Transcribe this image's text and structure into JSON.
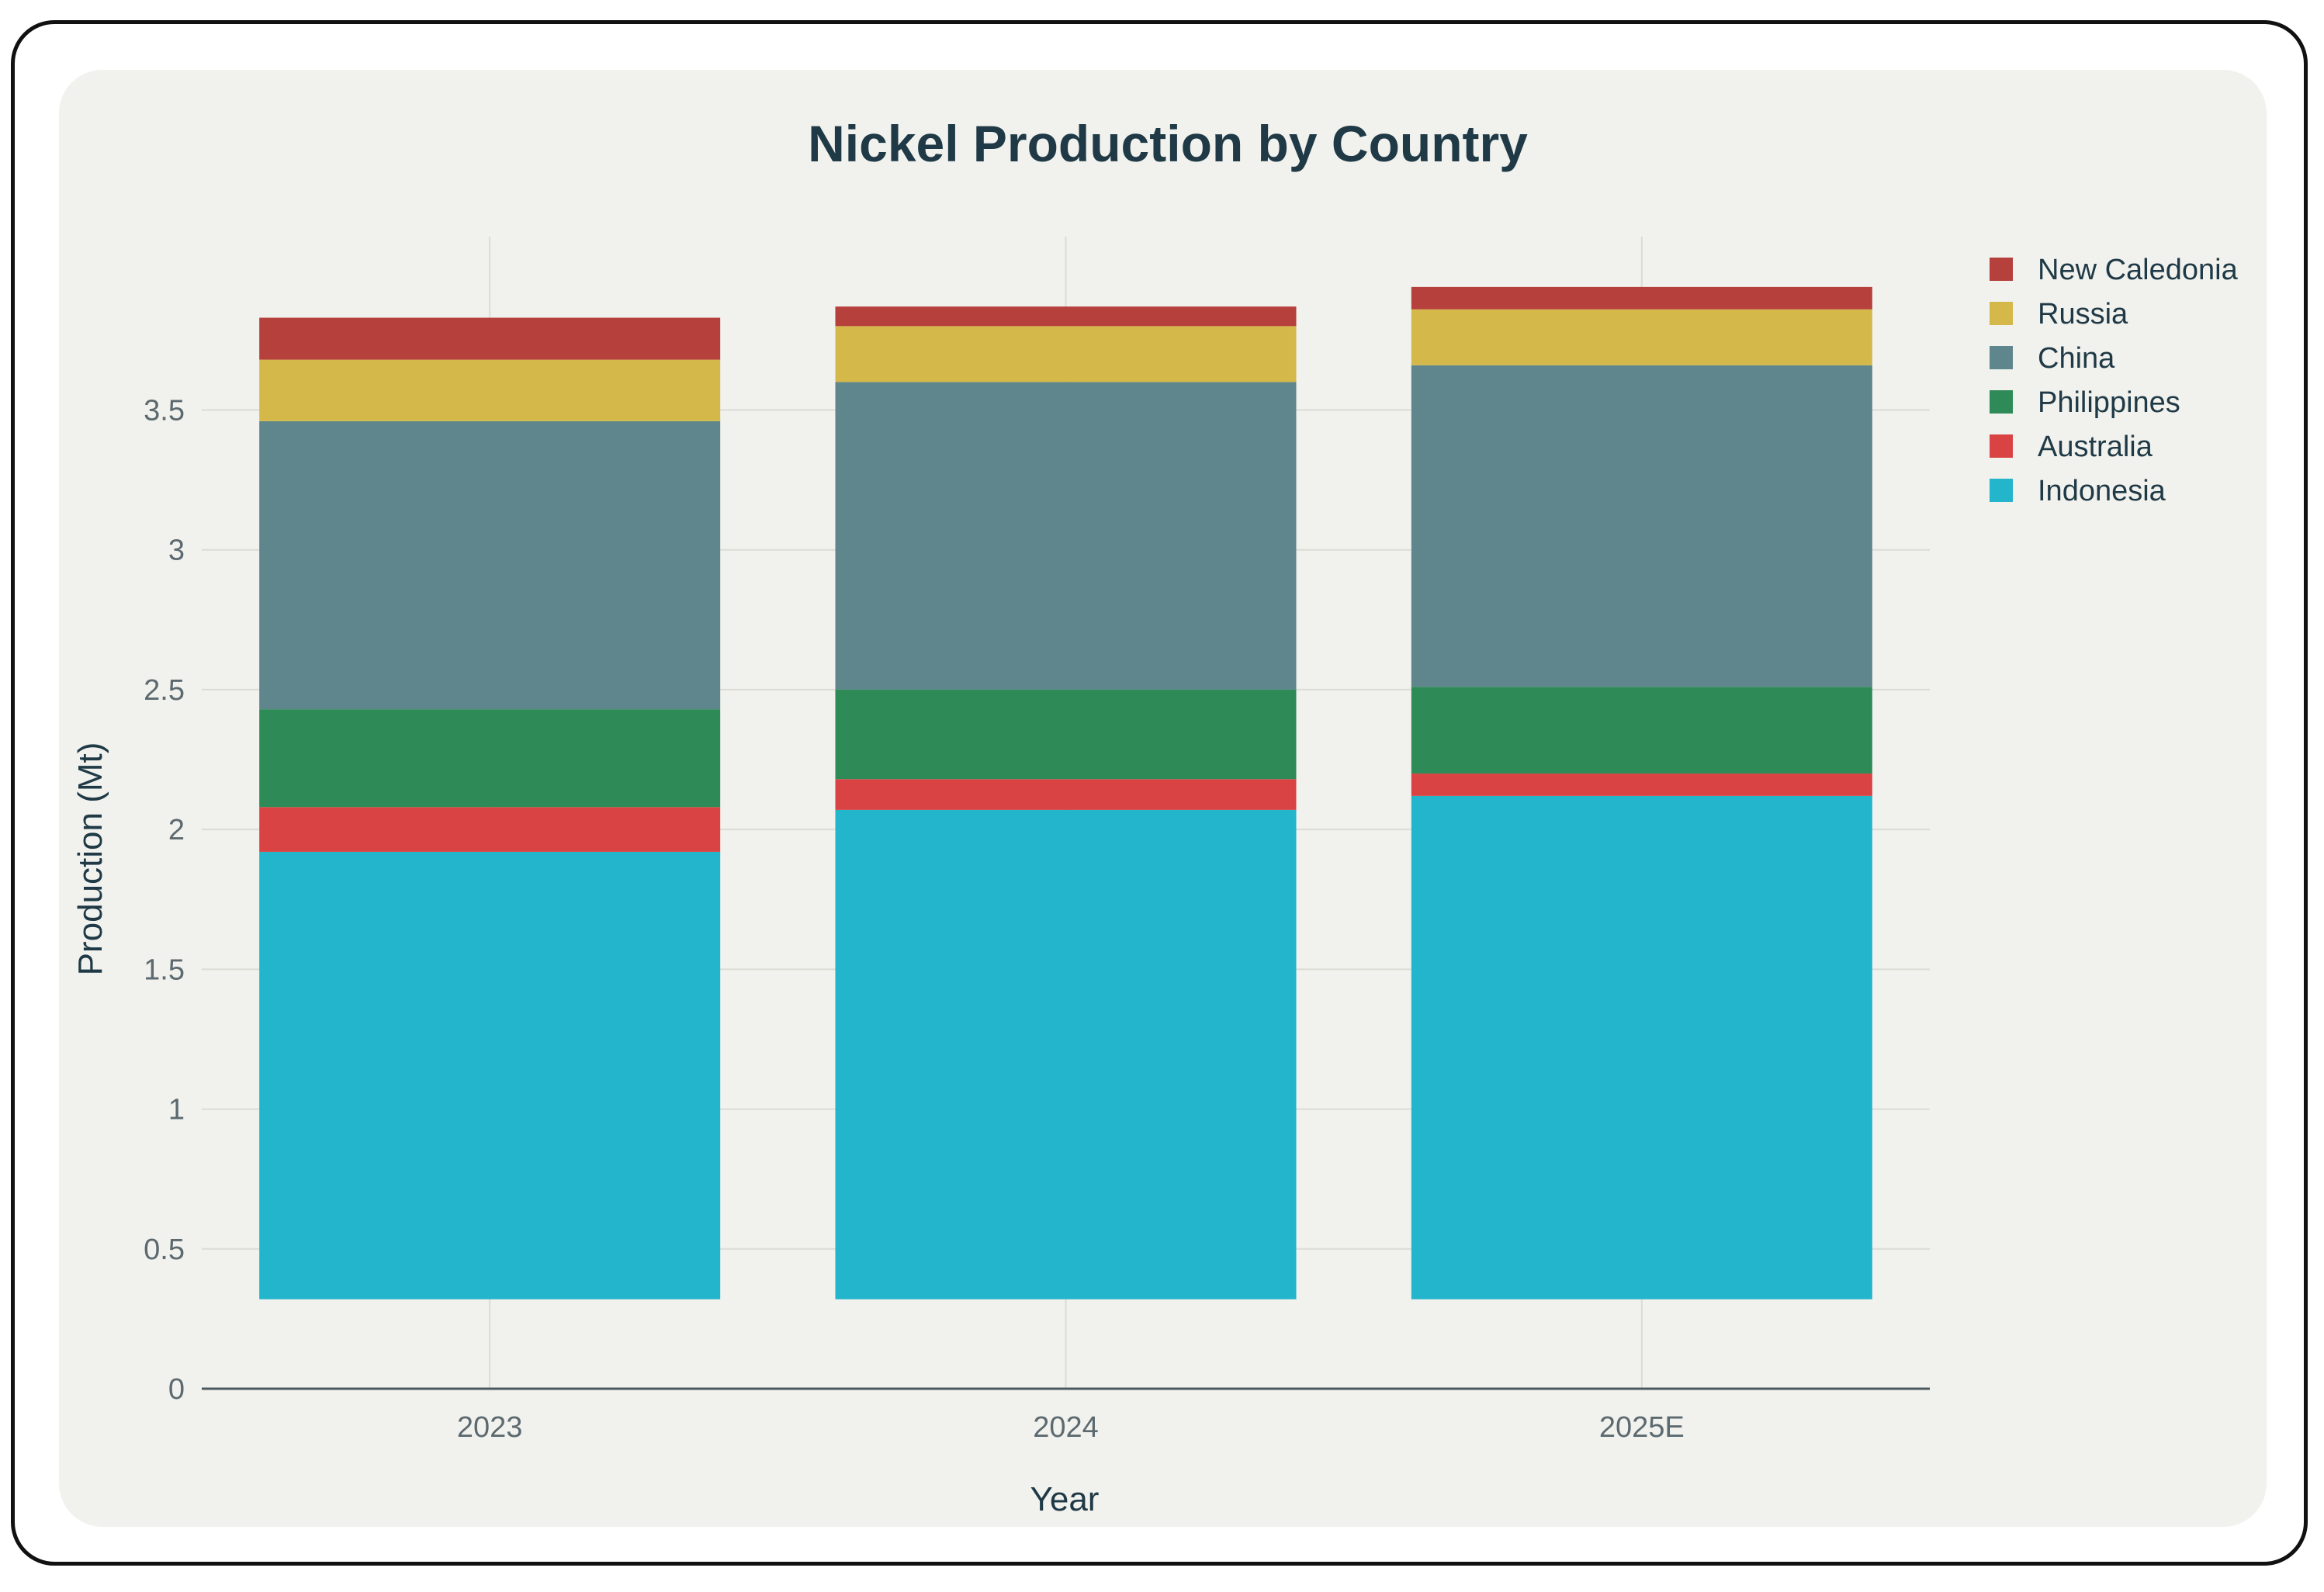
{
  "chart_data": {
    "type": "bar",
    "stacked": true,
    "title": "Nickel Production by Country",
    "xlabel": "Year",
    "ylabel": "Production (Mt)",
    "categories": [
      "2023",
      "2024",
      "2025E"
    ],
    "ylim": [
      0,
      4.2
    ],
    "yticks": [
      0,
      0.5,
      1,
      1.5,
      2,
      2.5,
      3,
      3.5
    ],
    "ytick_labels": [
      "0",
      "0.5",
      "1",
      "1.5",
      "2",
      "2.5",
      "3",
      "3.5"
    ],
    "grid": true,
    "legend_position": "right",
    "series": [
      {
        "name": "Indonesia",
        "color": "#22b5cc",
        "base": 0.32,
        "values": [
          1.6,
          1.75,
          1.8
        ]
      },
      {
        "name": "Australia",
        "color": "#d94343",
        "values": [
          0.16,
          0.11,
          0.08
        ]
      },
      {
        "name": "Philippines",
        "color": "#2e8b57",
        "values": [
          0.35,
          0.32,
          0.31
        ]
      },
      {
        "name": "China",
        "color": "#5e868c",
        "values": [
          1.03,
          1.1,
          1.15
        ]
      },
      {
        "name": "Russia",
        "color": "#d4b84a",
        "values": [
          0.22,
          0.2,
          0.2
        ]
      },
      {
        "name": "New Caledonia",
        "color": "#b5403c",
        "values": [
          0.15,
          0.07,
          0.08
        ]
      }
    ],
    "legend_order": [
      "New Caledonia",
      "Russia",
      "China",
      "Philippines",
      "Australia",
      "Indonesia"
    ]
  }
}
